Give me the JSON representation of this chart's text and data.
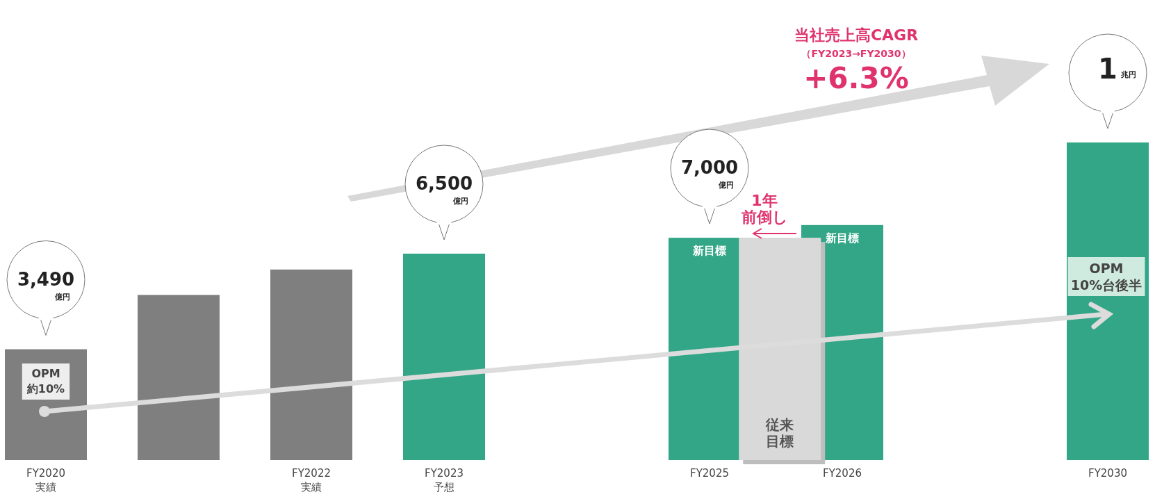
{
  "chart_data": {
    "type": "bar",
    "categories": [
      "FY2020\n実績",
      null,
      "FY2022\n実績",
      "FY2023\n予想",
      null,
      "FY2025",
      "FY2026",
      null,
      "FY2030"
    ],
    "series": [
      {
        "values": [
          3490,
          5200,
          6000,
          6500,
          null,
          7000,
          7400,
          null,
          10000
        ],
        "colors": [
          "#7f7f7f",
          "#7f7f7f",
          "#7f7f7f",
          "#33a687",
          null,
          "#33a687",
          "#33a687",
          null,
          "#33a687"
        ],
        "value_labels": [
          "3,490億円",
          null,
          null,
          "6,500億円",
          null,
          "7,000億円",
          null,
          null,
          null
        ]
      },
      {
        "name": "従来目標",
        "color": "#d9d9d9",
        "values": [
          null,
          null,
          null,
          null,
          null,
          null,
          7000,
          null,
          null
        ]
      }
    ],
    "annotations": [
      "当社売上高CAGR",
      "（FY2023→FY2030）",
      "+6.3%",
      "1年前倒し",
      "OPM\n約10%",
      "OPM\n10%台後半",
      {
        "text": "1兆円",
        "x": "FY2030",
        "y": 10000
      },
      {
        "text": "新目標",
        "x": "FY2025",
        "y": 7000
      },
      {
        "text": "新目標",
        "x": "FY2026",
        "y": 7400
      }
    ]
  }
}
